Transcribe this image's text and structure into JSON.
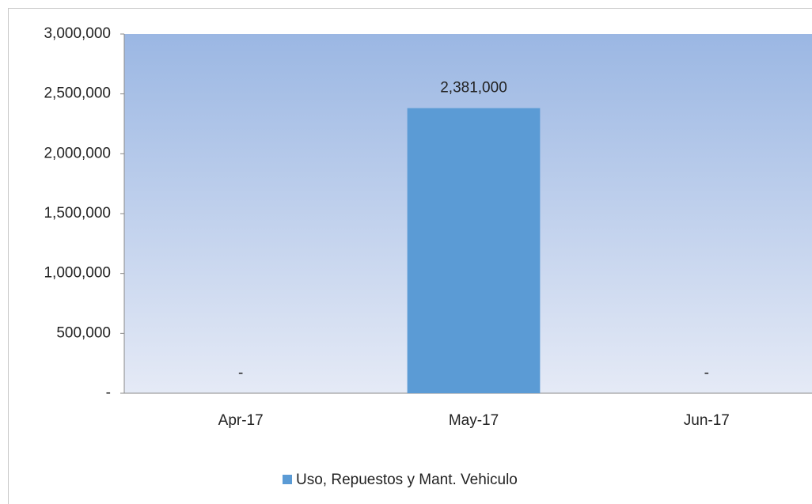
{
  "chart_data": {
    "type": "bar",
    "categories": [
      "Apr-17",
      "May-17",
      "Jun-17"
    ],
    "series": [
      {
        "name": "Uso, Repuestos y Mant. Vehiculo",
        "color": "#5b9bd5",
        "values": [
          0,
          2381000,
          0
        ],
        "value_labels": [
          "-",
          "2,381,000",
          "-"
        ]
      }
    ],
    "ylim": [
      0,
      3000000
    ],
    "yticks": [
      {
        "value": 0,
        "label": "-"
      },
      {
        "value": 500000,
        "label": "500,000"
      },
      {
        "value": 1000000,
        "label": "1,000,000"
      },
      {
        "value": 1500000,
        "label": "1,500,000"
      },
      {
        "value": 2000000,
        "label": "2,000,000"
      },
      {
        "value": 2500000,
        "label": "2,500,000"
      },
      {
        "value": 3000000,
        "label": "3,000,000"
      }
    ],
    "legend": "bottom"
  }
}
